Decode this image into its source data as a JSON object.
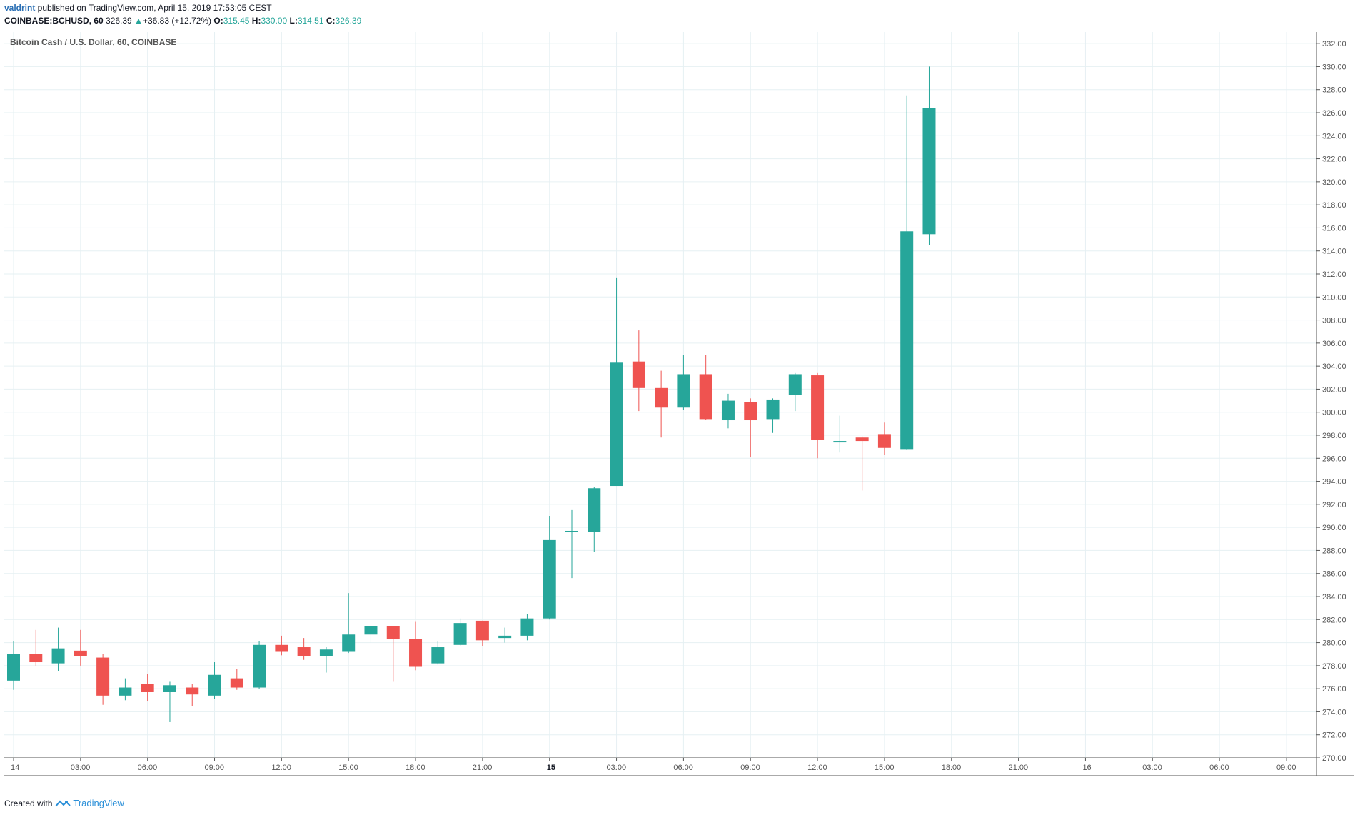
{
  "header": {
    "author": "valdrint",
    "published_text": " published on TradingView.com, April 15, 2019 17:53:05 CEST",
    "symbol": "COINBASE:BCHUSD, 60",
    "last": "326.39",
    "change": "+36.83 (+12.72%)",
    "o_label": "O:",
    "o_value": "315.45",
    "h_label": "H:",
    "h_value": "330.00",
    "l_label": "L:",
    "l_value": "314.51",
    "c_label": "C:",
    "c_value": "326.39"
  },
  "footer": {
    "created_with": "Created with",
    "brand": "TradingView"
  },
  "colors": {
    "up": "#26a69a",
    "down": "#ef5350",
    "grid": "#e6f0f3",
    "axis_text": "#555555"
  },
  "chart_data": {
    "type": "candlestick",
    "title": "Bitcoin Cash / U.S. Dollar, 60, COINBASE",
    "xlabel": "",
    "ylabel": "",
    "ylim": [
      270,
      333
    ],
    "grid": true,
    "y_ticks": [
      "270.00",
      "272.00",
      "274.00",
      "276.00",
      "278.00",
      "280.00",
      "282.00",
      "284.00",
      "286.00",
      "288.00",
      "290.00",
      "292.00",
      "294.00",
      "296.00",
      "298.00",
      "300.00",
      "302.00",
      "304.00",
      "306.00",
      "308.00",
      "310.00",
      "312.00",
      "314.00",
      "316.00",
      "318.00",
      "320.00",
      "322.00",
      "324.00",
      "326.00",
      "328.00",
      "330.00",
      "332.00"
    ],
    "x_ticks": [
      {
        "label": "14",
        "index": 0,
        "bold": false
      },
      {
        "label": "03:00",
        "index": 3,
        "bold": false
      },
      {
        "label": "06:00",
        "index": 6,
        "bold": false
      },
      {
        "label": "09:00",
        "index": 9,
        "bold": false
      },
      {
        "label": "12:00",
        "index": 12,
        "bold": false
      },
      {
        "label": "15:00",
        "index": 15,
        "bold": false
      },
      {
        "label": "18:00",
        "index": 18,
        "bold": false
      },
      {
        "label": "21:00",
        "index": 21,
        "bold": false
      },
      {
        "label": "15",
        "index": 24,
        "bold": true
      },
      {
        "label": "03:00",
        "index": 27,
        "bold": false
      },
      {
        "label": "06:00",
        "index": 30,
        "bold": false
      },
      {
        "label": "09:00",
        "index": 33,
        "bold": false
      },
      {
        "label": "12:00",
        "index": 36,
        "bold": false
      },
      {
        "label": "15:00",
        "index": 39,
        "bold": false
      },
      {
        "label": "18:00",
        "index": 42,
        "bold": false
      },
      {
        "label": "21:00",
        "index": 45,
        "bold": false
      },
      {
        "label": "16",
        "index": 48,
        "bold": false
      },
      {
        "label": "03:00",
        "index": 51,
        "bold": false
      },
      {
        "label": "06:00",
        "index": 54,
        "bold": false
      },
      {
        "label": "09:00",
        "index": 57,
        "bold": false
      }
    ],
    "slots": 59,
    "candles": [
      {
        "o": 276.7,
        "h": 280.1,
        "l": 275.9,
        "c": 279.0
      },
      {
        "o": 279.0,
        "h": 281.1,
        "l": 278.0,
        "c": 278.3
      },
      {
        "o": 278.2,
        "h": 281.3,
        "l": 277.5,
        "c": 279.5
      },
      {
        "o": 279.3,
        "h": 281.1,
        "l": 278.0,
        "c": 278.8
      },
      {
        "o": 278.7,
        "h": 279.0,
        "l": 274.6,
        "c": 275.4
      },
      {
        "o": 275.4,
        "h": 276.9,
        "l": 275.0,
        "c": 276.1
      },
      {
        "o": 276.4,
        "h": 277.3,
        "l": 274.9,
        "c": 275.7
      },
      {
        "o": 275.7,
        "h": 276.6,
        "l": 273.1,
        "c": 276.3
      },
      {
        "o": 276.1,
        "h": 276.4,
        "l": 274.5,
        "c": 275.5
      },
      {
        "o": 275.4,
        "h": 278.3,
        "l": 275.1,
        "c": 277.2
      },
      {
        "o": 276.9,
        "h": 277.7,
        "l": 275.9,
        "c": 276.1
      },
      {
        "o": 276.1,
        "h": 280.1,
        "l": 276.0,
        "c": 279.8
      },
      {
        "o": 279.8,
        "h": 280.6,
        "l": 278.9,
        "c": 279.2
      },
      {
        "o": 279.6,
        "h": 280.4,
        "l": 278.5,
        "c": 278.8
      },
      {
        "o": 278.8,
        "h": 279.6,
        "l": 277.4,
        "c": 279.4
      },
      {
        "o": 279.2,
        "h": 284.3,
        "l": 279.1,
        "c": 280.7
      },
      {
        "o": 280.7,
        "h": 281.5,
        "l": 280.0,
        "c": 281.4
      },
      {
        "o": 281.4,
        "h": 281.4,
        "l": 276.6,
        "c": 280.3
      },
      {
        "o": 280.3,
        "h": 281.8,
        "l": 277.6,
        "c": 277.9
      },
      {
        "o": 278.2,
        "h": 280.1,
        "l": 278.1,
        "c": 279.6
      },
      {
        "o": 279.8,
        "h": 282.1,
        "l": 279.7,
        "c": 281.7
      },
      {
        "o": 281.9,
        "h": 281.9,
        "l": 279.7,
        "c": 280.2
      },
      {
        "o": 280.4,
        "h": 281.3,
        "l": 280.0,
        "c": 280.6
      },
      {
        "o": 280.6,
        "h": 282.5,
        "l": 280.2,
        "c": 282.1
      },
      {
        "o": 282.1,
        "h": 291.0,
        "l": 282.0,
        "c": 288.9
      },
      {
        "o": 289.6,
        "h": 291.5,
        "l": 285.6,
        "c": 289.7
      },
      {
        "o": 289.6,
        "h": 293.5,
        "l": 287.9,
        "c": 293.4
      },
      {
        "o": 293.6,
        "h": 311.7,
        "l": 293.6,
        "c": 304.3
      },
      {
        "o": 304.4,
        "h": 307.1,
        "l": 300.1,
        "c": 302.1
      },
      {
        "o": 302.1,
        "h": 303.6,
        "l": 297.8,
        "c": 300.4
      },
      {
        "o": 300.4,
        "h": 305.0,
        "l": 300.2,
        "c": 303.3
      },
      {
        "o": 303.3,
        "h": 305.0,
        "l": 299.3,
        "c": 299.4
      },
      {
        "o": 299.3,
        "h": 301.6,
        "l": 298.6,
        "c": 301.0
      },
      {
        "o": 300.9,
        "h": 301.2,
        "l": 296.1,
        "c": 299.3
      },
      {
        "o": 299.4,
        "h": 301.2,
        "l": 298.2,
        "c": 301.1
      },
      {
        "o": 301.5,
        "h": 303.4,
        "l": 300.1,
        "c": 303.3
      },
      {
        "o": 303.2,
        "h": 303.4,
        "l": 296.0,
        "c": 297.6
      },
      {
        "o": 297.4,
        "h": 299.7,
        "l": 296.5,
        "c": 297.5
      },
      {
        "o": 297.8,
        "h": 297.9,
        "l": 293.2,
        "c": 297.5
      },
      {
        "o": 298.1,
        "h": 299.1,
        "l": 296.3,
        "c": 296.9
      },
      {
        "o": 296.8,
        "h": 327.5,
        "l": 296.7,
        "c": 315.7
      },
      {
        "o": 315.45,
        "h": 330.0,
        "l": 314.51,
        "c": 326.39
      }
    ]
  }
}
